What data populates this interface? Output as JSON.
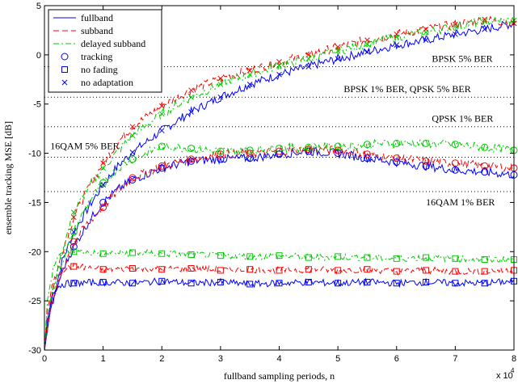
{
  "chart_data": {
    "type": "line",
    "xlabel": "fullband sampling periods, n",
    "ylabel": "ensemble tracking MSE [dB]",
    "x_multiplier": "x 10",
    "x_multiplier_exp": "4",
    "xlim": [
      0,
      8
    ],
    "ylim": [
      -30,
      5
    ],
    "xticks": [
      0,
      1,
      2,
      3,
      4,
      5,
      6,
      7,
      8
    ],
    "yticks": [
      -30,
      -25,
      -20,
      -15,
      -10,
      -5,
      0,
      5
    ],
    "xtick_labels": [
      "0",
      "1",
      "2",
      "3",
      "4",
      "5",
      "6",
      "7",
      "8"
    ],
    "ytick_labels": [
      "-30",
      "-25",
      "-20",
      "-15",
      "-10",
      "-5",
      "0",
      "5"
    ],
    "ber_lines": [
      {
        "label": "BPSK 5% BER",
        "y": -1.2,
        "label_x": 6.6,
        "label_y": -0.7
      },
      {
        "label": "BPSK 1% BER, QPSK 5% BER",
        "y": -4.3,
        "label_x": 5.1,
        "label_y": -3.8
      },
      {
        "label": "QPSK 1% BER",
        "y": -7.3,
        "label_x": 6.6,
        "label_y": -6.8
      },
      {
        "label": "16QAM 5% BER",
        "y": -10.4,
        "label_x": 0.1,
        "label_y": -9.6
      },
      {
        "label": "16QAM 1% BER",
        "y": -13.9,
        "label_x": 6.5,
        "label_y": -15.3
      }
    ],
    "colors": {
      "fullband": "#0000ff",
      "subband": "#ff0000",
      "delayed": "#00cc00",
      "ber": "#000000"
    },
    "legend": {
      "position": "top-left",
      "entries": [
        {
          "label": "fullband",
          "kind": "line",
          "dash": "solid",
          "color": "#0000ff"
        },
        {
          "label": "subband",
          "kind": "line",
          "dash": "dash",
          "color": "#ff0000"
        },
        {
          "label": "delayed subband",
          "kind": "line",
          "dash": "dashdot",
          "color": "#00cc00"
        },
        {
          "label": "tracking",
          "kind": "marker",
          "marker": "circle",
          "color": "#0000ff"
        },
        {
          "label": "no fading",
          "kind": "marker",
          "marker": "square",
          "color": "#0000ff"
        },
        {
          "label": "no adaptation",
          "kind": "marker",
          "marker": "x",
          "color": "#0000ff"
        }
      ]
    },
    "series": [
      {
        "name": "fullband",
        "style": "solid",
        "color": "#0000ff",
        "marker": "x",
        "x": [
          0,
          0.1,
          0.3,
          0.5,
          0.75,
          1,
          1.25,
          1.5,
          2,
          2.5,
          3,
          3.5,
          4,
          4.5,
          5,
          5.5,
          6,
          6.5,
          7,
          7.5,
          8
        ],
        "y": [
          -30,
          -26,
          -21,
          -18,
          -15.5,
          -13.2,
          -11.3,
          -9.9,
          -7.7,
          -5.8,
          -4.3,
          -3,
          -2,
          -1.2,
          -0.4,
          0.3,
          1,
          1.5,
          2.1,
          2.6,
          3.2
        ]
      },
      {
        "name": "subband",
        "style": "dash",
        "color": "#ff0000",
        "marker": "x",
        "x": [
          0,
          0.1,
          0.3,
          0.5,
          0.75,
          1,
          1.25,
          1.5,
          2,
          2.5,
          3,
          3.5,
          4,
          4.5,
          5,
          5.5,
          6,
          6.5,
          7,
          7.5,
          8
        ],
        "y": [
          -30,
          -25,
          -20,
          -16.5,
          -13.5,
          -11,
          -8.9,
          -7.3,
          -5.2,
          -3.6,
          -2.4,
          -1.6,
          -0.7,
          0,
          0.8,
          1.5,
          2.1,
          2.6,
          3.1,
          3.6,
          3.2
        ]
      },
      {
        "name": "delayed subband",
        "style": "dashdot",
        "color": "#00cc00",
        "marker": "x",
        "x": [
          0,
          0.1,
          0.3,
          0.5,
          0.75,
          1,
          1.25,
          1.5,
          2,
          2.5,
          3,
          3.5,
          4,
          4.5,
          5,
          5.5,
          6,
          6.5,
          7,
          7.5,
          8
        ],
        "y": [
          -30,
          -25,
          -20,
          -16,
          -13.5,
          -11.5,
          -9.8,
          -8.2,
          -6,
          -4.3,
          -3,
          -2,
          -1.1,
          -0.4,
          0.4,
          1.1,
          1.8,
          2.3,
          2.9,
          3.4,
          3.5
        ]
      },
      {
        "name": "fullband",
        "style": "solid",
        "color": "#0000ff",
        "marker": "circle",
        "x": [
          0,
          0.1,
          0.3,
          0.5,
          0.75,
          1,
          1.25,
          1.5,
          2,
          2.5,
          3,
          3.5,
          4,
          4.5,
          5,
          5.5,
          6,
          6.5,
          7,
          7.5,
          8
        ],
        "y": [
          -30,
          -26,
          -22,
          -19.5,
          -17,
          -15,
          -13.7,
          -12.7,
          -11.5,
          -10.8,
          -10.6,
          -10.5,
          -10.1,
          -9.8,
          -10,
          -10.5,
          -10.9,
          -11.3,
          -11.7,
          -11.9,
          -12.2
        ]
      },
      {
        "name": "subband",
        "style": "dash",
        "color": "#ff0000",
        "marker": "circle",
        "x": [
          0,
          0.1,
          0.3,
          0.5,
          0.75,
          1,
          1.25,
          1.5,
          2,
          2.5,
          3,
          3.5,
          4,
          4.5,
          5,
          5.5,
          6,
          6.5,
          7,
          7.5,
          8
        ],
        "y": [
          -30,
          -26,
          -22,
          -19,
          -17,
          -15.5,
          -13.8,
          -12.5,
          -11.3,
          -10.6,
          -10.1,
          -10,
          -9.8,
          -9.6,
          -9.7,
          -10.1,
          -10.5,
          -10.8,
          -11,
          -11.3,
          -11.5
        ]
      },
      {
        "name": "delayed subband",
        "style": "dashdot",
        "color": "#00cc00",
        "marker": "circle",
        "x": [
          0,
          0.1,
          0.3,
          0.5,
          0.75,
          1,
          1.25,
          1.5,
          2,
          2.5,
          3,
          3.5,
          4,
          4.5,
          5,
          5.5,
          6,
          6.5,
          7,
          7.5,
          8
        ],
        "y": [
          -30,
          -25,
          -21,
          -18,
          -15,
          -13,
          -11.5,
          -10.6,
          -9.3,
          -9.5,
          -9.8,
          -9.7,
          -9.5,
          -9.4,
          -9.3,
          -9.1,
          -9,
          -9,
          -9.1,
          -9.4,
          -9.7
        ]
      },
      {
        "name": "fullband",
        "style": "solid",
        "color": "#0000ff",
        "marker": "square",
        "x": [
          0,
          0.05,
          0.15,
          0.3,
          0.5,
          1,
          1.5,
          2,
          2.5,
          3,
          3.5,
          4,
          4.5,
          5,
          5.5,
          6,
          6.5,
          7,
          7.5,
          8
        ],
        "y": [
          -30,
          -27,
          -24,
          -23.3,
          -23.2,
          -23.1,
          -23.2,
          -23,
          -23.2,
          -23.1,
          -23.3,
          -23.2,
          -23.1,
          -23.2,
          -23.1,
          -23.2,
          -23.1,
          -23.2,
          -23.2,
          -23
        ]
      },
      {
        "name": "subband",
        "style": "dash",
        "color": "#ff0000",
        "marker": "square",
        "x": [
          0,
          0.05,
          0.15,
          0.3,
          0.5,
          1,
          1.5,
          2,
          2.5,
          3,
          3.5,
          4,
          4.5,
          5,
          5.5,
          6,
          6.5,
          7,
          7.5,
          8
        ],
        "y": [
          -30,
          -26,
          -23,
          -21.8,
          -21.5,
          -21.8,
          -21.7,
          -21.8,
          -21.7,
          -21.9,
          -21.8,
          -21.9,
          -21.8,
          -21.9,
          -21.8,
          -22,
          -21.9,
          -22,
          -22,
          -21.9
        ]
      },
      {
        "name": "delayed subband",
        "style": "dashdot",
        "color": "#00cc00",
        "marker": "square",
        "x": [
          0,
          0.05,
          0.15,
          0.3,
          0.5,
          1,
          1.5,
          2,
          2.5,
          3,
          3.5,
          4,
          4.5,
          5,
          5.5,
          6,
          6.5,
          7,
          7.5,
          8
        ],
        "y": [
          -30,
          -25,
          -21.5,
          -20.1,
          -20,
          -20.2,
          -20.1,
          -20.2,
          -20.3,
          -20.4,
          -20.5,
          -20.4,
          -20.6,
          -20.5,
          -20.6,
          -20.7,
          -20.6,
          -20.7,
          -20.8,
          -20.8
        ]
      }
    ]
  }
}
